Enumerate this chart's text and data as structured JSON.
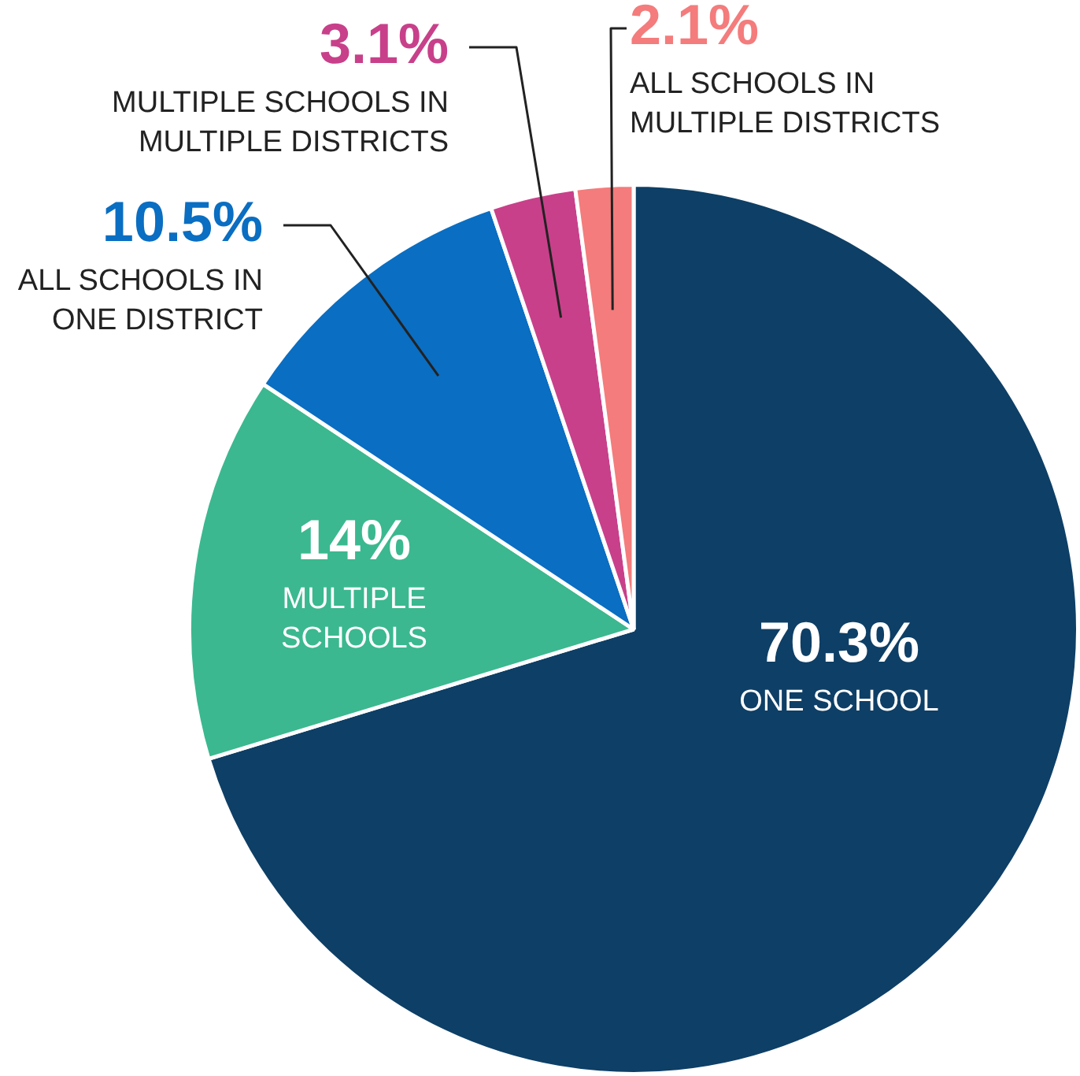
{
  "chart_data": {
    "type": "pie",
    "categories": [
      "ONE SCHOOL",
      "MULTIPLE SCHOOLS",
      "ALL SCHOOLS IN ONE DISTRICT",
      "MULTIPLE SCHOOLS IN MULTIPLE DISTRICTS",
      "ALL SCHOOLS IN MULTIPLE DISTRICTS"
    ],
    "values": [
      70.3,
      14,
      10.5,
      3.1,
      2.1
    ],
    "colors": [
      "#0e3f66",
      "#3bb88f",
      "#0a6ec2",
      "#c8408a",
      "#f47c7c"
    ],
    "value_labels": [
      "70.3%",
      "14%",
      "10.5%",
      "3.1%",
      "2.1%"
    ]
  }
}
